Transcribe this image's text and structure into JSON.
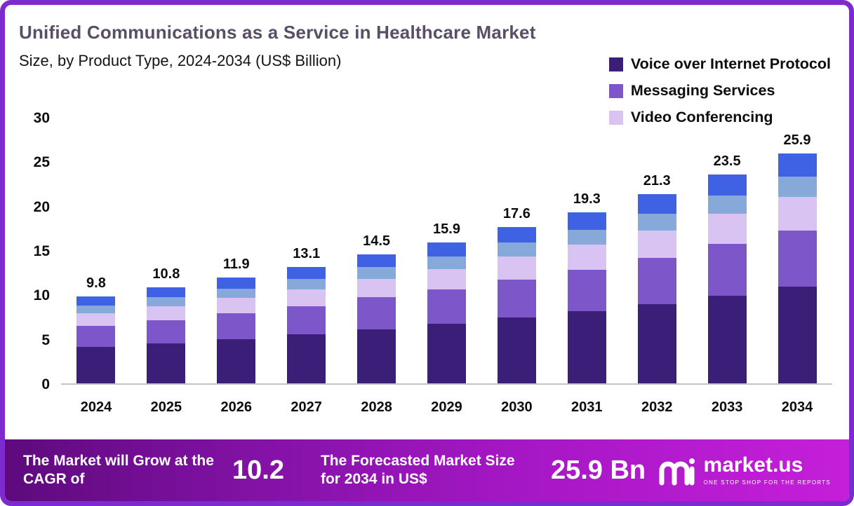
{
  "chart_data": {
    "type": "stacked-bar",
    "title": "Unified Communications as a Service in Healthcare Market",
    "subtitle": "Size, by Product Type, 2024-2034 (US$ Billion)",
    "categories": [
      "2024",
      "2025",
      "2026",
      "2027",
      "2028",
      "2029",
      "2030",
      "2031",
      "2032",
      "2033",
      "2034"
    ],
    "totals": [
      9.8,
      10.8,
      11.9,
      13.1,
      14.5,
      15.9,
      17.6,
      19.3,
      21.3,
      23.5,
      25.9
    ],
    "series": [
      {
        "name": "Voice over Internet Protocol",
        "color": "#3b1e78",
        "in_legend": true,
        "values": [
          4.1,
          4.5,
          5.0,
          5.5,
          6.1,
          6.7,
          7.4,
          8.1,
          8.9,
          9.9,
          10.9
        ]
      },
      {
        "name": "Messaging Services",
        "color": "#7d57c9",
        "in_legend": true,
        "values": [
          2.4,
          2.6,
          2.9,
          3.2,
          3.6,
          3.9,
          4.3,
          4.7,
          5.2,
          5.8,
          6.3
        ]
      },
      {
        "name": "Video Conferencing",
        "color": "#d9c3f2",
        "in_legend": true,
        "values": [
          1.4,
          1.6,
          1.7,
          1.9,
          2.1,
          2.3,
          2.6,
          2.8,
          3.1,
          3.4,
          3.8
        ]
      },
      {
        "name": "",
        "color": "#87a9d9",
        "in_legend": false,
        "values": [
          0.9,
          1.0,
          1.1,
          1.2,
          1.3,
          1.4,
          1.6,
          1.7,
          1.9,
          2.1,
          2.3
        ]
      },
      {
        "name": "",
        "color": "#3f62e4",
        "in_legend": false,
        "values": [
          1.0,
          1.1,
          1.2,
          1.3,
          1.4,
          1.6,
          1.7,
          2.0,
          2.2,
          2.3,
          2.6
        ]
      }
    ],
    "xlabel": "",
    "ylabel": "",
    "ylim": [
      0,
      30
    ],
    "yticks": [
      0,
      5,
      10,
      15,
      20,
      25,
      30
    ],
    "grid": false,
    "legend_position": "top-right"
  },
  "footer": {
    "cagr_label": "The Market will Grow at the CAGR of",
    "cagr_value": "10.2",
    "forecast_label": "The Forecasted Market Size for 2034 in US$",
    "forecast_value": "25.9 Bn",
    "brand_name": "market.us",
    "brand_tagline": "ONE STOP SHOP FOR THE REPORTS"
  },
  "colors": {
    "frame_border": "#7d2ace",
    "title_text": "#584e66",
    "footer_gradient_start": "#5e0a7d",
    "footer_gradient_end": "#c51fd9",
    "axis_line": "#c4c4c4"
  }
}
